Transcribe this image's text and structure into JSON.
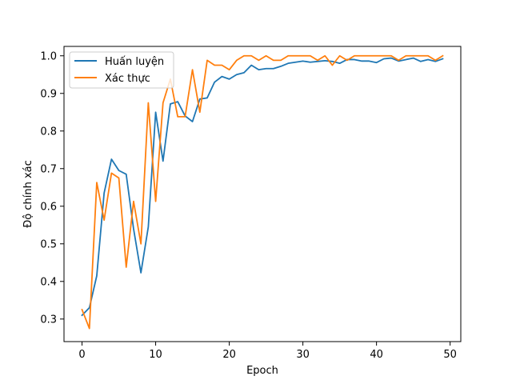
{
  "chart_data": {
    "type": "line",
    "title": "",
    "xlabel": "Epoch",
    "ylabel": "Độ chính xác",
    "xlim": [
      -2.45,
      51.45
    ],
    "ylim": [
      0.24,
      1.025
    ],
    "xticks": [
      0,
      10,
      20,
      30,
      40,
      50
    ],
    "yticks": [
      0.3,
      0.4,
      0.5,
      0.6,
      0.7,
      0.8,
      0.9,
      1.0
    ],
    "ytick_labels": [
      "0.3",
      "0.4",
      "0.5",
      "0.6",
      "0.7",
      "0.8",
      "0.9",
      "1.0"
    ],
    "grid": false,
    "legend_position": "upper-left",
    "x": [
      0,
      1,
      2,
      3,
      4,
      5,
      6,
      7,
      8,
      9,
      10,
      11,
      12,
      13,
      14,
      15,
      16,
      17,
      18,
      19,
      20,
      21,
      22,
      23,
      24,
      25,
      26,
      27,
      28,
      29,
      30,
      31,
      32,
      33,
      34,
      35,
      36,
      37,
      38,
      39,
      40,
      41,
      42,
      43,
      44,
      45,
      46,
      47,
      48,
      49
    ],
    "series": [
      {
        "name": "Huấn luyện",
        "color": "#1f77b4",
        "values": [
          0.31,
          0.33,
          0.415,
          0.635,
          0.725,
          0.695,
          0.685,
          0.54,
          0.423,
          0.545,
          0.85,
          0.72,
          0.872,
          0.878,
          0.84,
          0.825,
          0.885,
          0.888,
          0.93,
          0.945,
          0.938,
          0.95,
          0.955,
          0.975,
          0.963,
          0.966,
          0.966,
          0.972,
          0.98,
          0.983,
          0.986,
          0.983,
          0.985,
          0.987,
          0.985,
          0.98,
          0.99,
          0.99,
          0.986,
          0.986,
          0.982,
          0.992,
          0.994,
          0.986,
          0.99,
          0.994,
          0.985,
          0.99,
          0.985,
          0.992
        ]
      },
      {
        "name": "Xác thực",
        "color": "#ff7f0e",
        "values": [
          0.325,
          0.275,
          0.663,
          0.563,
          0.688,
          0.675,
          0.438,
          0.613,
          0.5,
          0.875,
          0.613,
          0.875,
          0.938,
          0.838,
          0.838,
          0.963,
          0.85,
          0.988,
          0.975,
          0.975,
          0.963,
          0.988,
          1.0,
          1.0,
          0.988,
          1.0,
          0.988,
          0.988,
          1.0,
          1.0,
          1.0,
          1.0,
          0.988,
          1.0,
          0.975,
          1.0,
          0.988,
          1.0,
          1.0,
          1.0,
          1.0,
          1.0,
          1.0,
          0.988,
          1.0,
          1.0,
          1.0,
          1.0,
          0.988,
          1.0
        ]
      }
    ]
  }
}
